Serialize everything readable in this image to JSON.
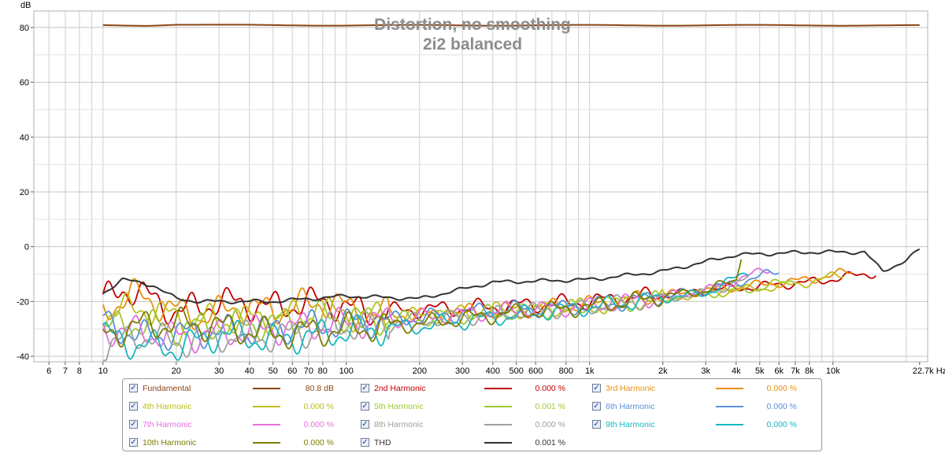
{
  "chart_data": {
    "type": "line",
    "title": "Distortion, no smoothing",
    "subtitle": "2i2 balanced",
    "ylabel": "dB",
    "xunit": "Hz",
    "xscale": "log",
    "xlim": [
      5.2,
      24500
    ],
    "ylim": [
      -42,
      86
    ],
    "grid": true,
    "legend_placement": "bottom",
    "y_ticks": [
      "80",
      "60",
      "40",
      "20",
      "0",
      "-20",
      "-40"
    ],
    "y_tick_values": [
      80,
      60,
      40,
      20,
      0,
      -20,
      -40
    ],
    "x_ticks": [
      {
        "v": 6,
        "label": "6"
      },
      {
        "v": 7,
        "label": "7"
      },
      {
        "v": 8,
        "label": "8"
      },
      {
        "v": 10,
        "label": "10"
      },
      {
        "v": 20,
        "label": "20"
      },
      {
        "v": 30,
        "label": "30"
      },
      {
        "v": 40,
        "label": "40"
      },
      {
        "v": 50,
        "label": "50"
      },
      {
        "v": 60,
        "label": "60"
      },
      {
        "v": 70,
        "label": "70"
      },
      {
        "v": 80,
        "label": "80"
      },
      {
        "v": 100,
        "label": "100"
      },
      {
        "v": 200,
        "label": "200"
      },
      {
        "v": 300,
        "label": "300"
      },
      {
        "v": 400,
        "label": "400"
      },
      {
        "v": 500,
        "label": "500"
      },
      {
        "v": 600,
        "label": "600"
      },
      {
        "v": 800,
        "label": "800"
      },
      {
        "v": 1000,
        "label": "1k"
      },
      {
        "v": 2000,
        "label": "2k"
      },
      {
        "v": 3000,
        "label": "3k"
      },
      {
        "v": 4000,
        "label": "4k"
      },
      {
        "v": 5000,
        "label": "5k"
      },
      {
        "v": 6000,
        "label": "6k"
      },
      {
        "v": 7000,
        "label": "7k"
      },
      {
        "v": 8000,
        "label": "8k"
      },
      {
        "v": 10000,
        "label": "10k"
      },
      {
        "v": 22700,
        "label": "22.7k Hz"
      }
    ],
    "series": [
      {
        "name": "Fundamental",
        "color": "#8b4513",
        "value_text": "80.8 dB",
        "points": [
          [
            10,
            80.8
          ],
          [
            15,
            80.7
          ],
          [
            20,
            81.1
          ],
          [
            30,
            80.9
          ],
          [
            50,
            80.8
          ],
          [
            100,
            80.8
          ],
          [
            300,
            80.8
          ],
          [
            1000,
            80.8
          ],
          [
            5000,
            80.8
          ],
          [
            10000,
            80.8
          ],
          [
            22700,
            80.7
          ]
        ]
      },
      {
        "name": "2nd Harmonic",
        "color": "#c00000",
        "value_text": "0.000 %",
        "points": [
          [
            10,
            -20
          ],
          [
            12,
            -15
          ],
          [
            16,
            -19
          ],
          [
            20,
            -24
          ],
          [
            30,
            -20
          ],
          [
            50,
            -22
          ],
          [
            80,
            -20
          ],
          [
            120,
            -24
          ],
          [
            200,
            -23
          ],
          [
            400,
            -22
          ],
          [
            1000,
            -20
          ],
          [
            3000,
            -16
          ],
          [
            8000,
            -13
          ],
          [
            15000,
            -9.5
          ]
        ]
      },
      {
        "name": "3rd Harmonic",
        "color": "#e8900c",
        "value_text": "0.000 %",
        "points": [
          [
            10,
            -24
          ],
          [
            13,
            -17
          ],
          [
            18,
            -22
          ],
          [
            25,
            -26
          ],
          [
            35,
            -22
          ],
          [
            50,
            -23
          ],
          [
            80,
            -20
          ],
          [
            120,
            -24
          ],
          [
            200,
            -25
          ],
          [
            500,
            -23
          ],
          [
            1000,
            -21
          ],
          [
            3000,
            -16
          ],
          [
            8000,
            -12
          ],
          [
            12000,
            -9
          ]
        ]
      },
      {
        "name": "4th Harmonic",
        "color": "#bcc01a",
        "value_text": "0.000 %",
        "points": [
          [
            10,
            -25
          ],
          [
            14,
            -22
          ],
          [
            20,
            -26
          ],
          [
            30,
            -27
          ],
          [
            50,
            -26
          ],
          [
            80,
            -24
          ],
          [
            150,
            -26
          ],
          [
            300,
            -24
          ],
          [
            1000,
            -22
          ],
          [
            3000,
            -17
          ],
          [
            7000,
            -14
          ],
          [
            11000,
            -10
          ]
        ]
      },
      {
        "name": "5th Harmonic",
        "color": "#9dc832",
        "value_text": "0.001 %",
        "points": [
          [
            10,
            -30
          ],
          [
            14,
            -28
          ],
          [
            20,
            -30
          ],
          [
            30,
            -29
          ],
          [
            50,
            -28
          ],
          [
            80,
            -25
          ],
          [
            150,
            -27
          ],
          [
            300,
            -25
          ],
          [
            1000,
            -22
          ],
          [
            3000,
            -17
          ],
          [
            5000,
            -15
          ],
          [
            7000,
            -12
          ]
        ]
      },
      {
        "name": "6th Harmonic",
        "color": "#5b8fd9",
        "value_text": "0.000 %",
        "points": [
          [
            10,
            -27
          ],
          [
            14,
            -33
          ],
          [
            20,
            -32
          ],
          [
            30,
            -31
          ],
          [
            50,
            -30
          ],
          [
            100,
            -28
          ],
          [
            200,
            -26
          ],
          [
            400,
            -23
          ],
          [
            1000,
            -22
          ],
          [
            3000,
            -16
          ],
          [
            6000,
            -9
          ]
        ]
      },
      {
        "name": "7th Harmonic",
        "color": "#e76fdc",
        "value_text": "0.000 %",
        "points": [
          [
            10,
            -30
          ],
          [
            14,
            -31
          ],
          [
            20,
            -33
          ],
          [
            30,
            -32
          ],
          [
            50,
            -30
          ],
          [
            100,
            -28
          ],
          [
            200,
            -26
          ],
          [
            500,
            -23
          ],
          [
            1000,
            -22
          ],
          [
            3000,
            -16
          ],
          [
            5500,
            -8
          ]
        ]
      },
      {
        "name": "8th Harmonic",
        "color": "#a0a0a0",
        "value_text": "0.000 %",
        "points": [
          [
            10,
            -38
          ],
          [
            14,
            -32
          ],
          [
            20,
            -35
          ],
          [
            30,
            -33
          ],
          [
            50,
            -33
          ],
          [
            100,
            -29
          ],
          [
            200,
            -27
          ],
          [
            500,
            -24
          ],
          [
            1000,
            -22
          ],
          [
            3000,
            -17
          ],
          [
            4500,
            -12
          ]
        ]
      },
      {
        "name": "9th Harmonic",
        "color": "#17b7c0",
        "value_text": "0.000 %",
        "points": [
          [
            10,
            -32
          ],
          [
            14,
            -36
          ],
          [
            20,
            -37
          ],
          [
            30,
            -32
          ],
          [
            50,
            -34
          ],
          [
            100,
            -31
          ],
          [
            200,
            -29
          ],
          [
            500,
            -25
          ],
          [
            1000,
            -22
          ],
          [
            3000,
            -17
          ],
          [
            4500,
            -9
          ]
        ]
      },
      {
        "name": "10th Harmonic",
        "color": "#7d7d00",
        "value_text": "0.000 %",
        "points": [
          [
            10,
            -32
          ],
          [
            14,
            -29
          ],
          [
            20,
            -28
          ],
          [
            30,
            -29
          ],
          [
            50,
            -32
          ],
          [
            100,
            -30
          ],
          [
            200,
            -28
          ],
          [
            500,
            -24
          ],
          [
            1000,
            -22
          ],
          [
            3000,
            -16
          ],
          [
            4000,
            -12
          ],
          [
            4200,
            -3
          ]
        ]
      },
      {
        "name": "THD",
        "color": "#333333",
        "value_text": "0.001 %",
        "points": [
          [
            10,
            -17
          ],
          [
            12,
            -12
          ],
          [
            16,
            -14
          ],
          [
            20,
            -19
          ],
          [
            25,
            -20
          ],
          [
            50,
            -20
          ],
          [
            100,
            -18
          ],
          [
            200,
            -19
          ],
          [
            400,
            -13
          ],
          [
            1000,
            -12
          ],
          [
            2000,
            -9
          ],
          [
            4000,
            -3
          ],
          [
            8000,
            -2
          ],
          [
            13500,
            -2
          ],
          [
            16000,
            -9
          ],
          [
            20000,
            -5
          ],
          [
            22700,
            -1
          ]
        ]
      }
    ]
  }
}
